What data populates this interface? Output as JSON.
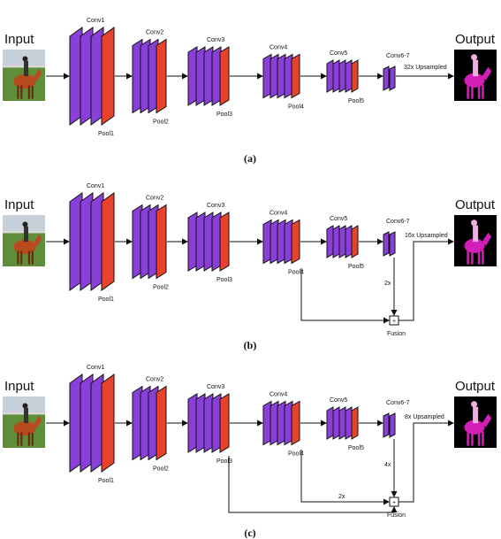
{
  "colors": {
    "conv": "#8b3fd9",
    "pool": "#e8412c",
    "outline": "#111111",
    "arrow": "#111111",
    "horse": "#b84a1f",
    "grass": "#5f8d3a",
    "sky": "#c7cfd8",
    "segmentation": "#d11fb8",
    "segmentation_bg": "#000000"
  },
  "panels": [
    {
      "id": "a",
      "caption": "(a)",
      "input_label": "Input",
      "output_label": "Output",
      "layers": {
        "conv1": "Conv1",
        "pool1": "Pool1",
        "conv2": "Conv2",
        "pool2": "Pool2",
        "conv3": "Conv3",
        "pool3": "Pool3",
        "conv4": "Conv4",
        "pool4": "Pool4",
        "conv5": "Conv5",
        "pool5": "Pool5",
        "conv67": "Conv6-7"
      },
      "upsample_label": "32x Upsampled"
    },
    {
      "id": "b",
      "caption": "(b)",
      "input_label": "Input",
      "output_label": "Output",
      "layers": {
        "conv1": "Conv1",
        "pool1": "Pool1",
        "conv2": "Conv2",
        "pool2": "Pool2",
        "conv3": "Conv3",
        "pool3": "Pool3",
        "conv4": "Conv4",
        "pool4": "Pool4",
        "conv5": "Conv5",
        "pool5": "Pool5",
        "conv67": "Conv6-7"
      },
      "upsample_label": "16x Upsampled",
      "skip_factor_label": "2x",
      "fusion_label": "Fusion",
      "fusion_symbol": "+"
    },
    {
      "id": "c",
      "caption": "(c)",
      "input_label": "Input",
      "output_label": "Output",
      "layers": {
        "conv1": "Conv1",
        "pool1": "Pool1",
        "conv2": "Conv2",
        "pool2": "Pool2",
        "conv3": "Conv3",
        "pool3": "Pool3",
        "conv4": "Conv4",
        "pool4": "Pool4",
        "conv5": "Conv5",
        "pool5": "Pool5",
        "conv67": "Conv6-7"
      },
      "upsample_label": "8x Upsampled",
      "skip_factor_label": "4x",
      "pool4_factor_label": "2x",
      "fusion_label": "Fusion",
      "fusion_symbol": "+"
    }
  ]
}
